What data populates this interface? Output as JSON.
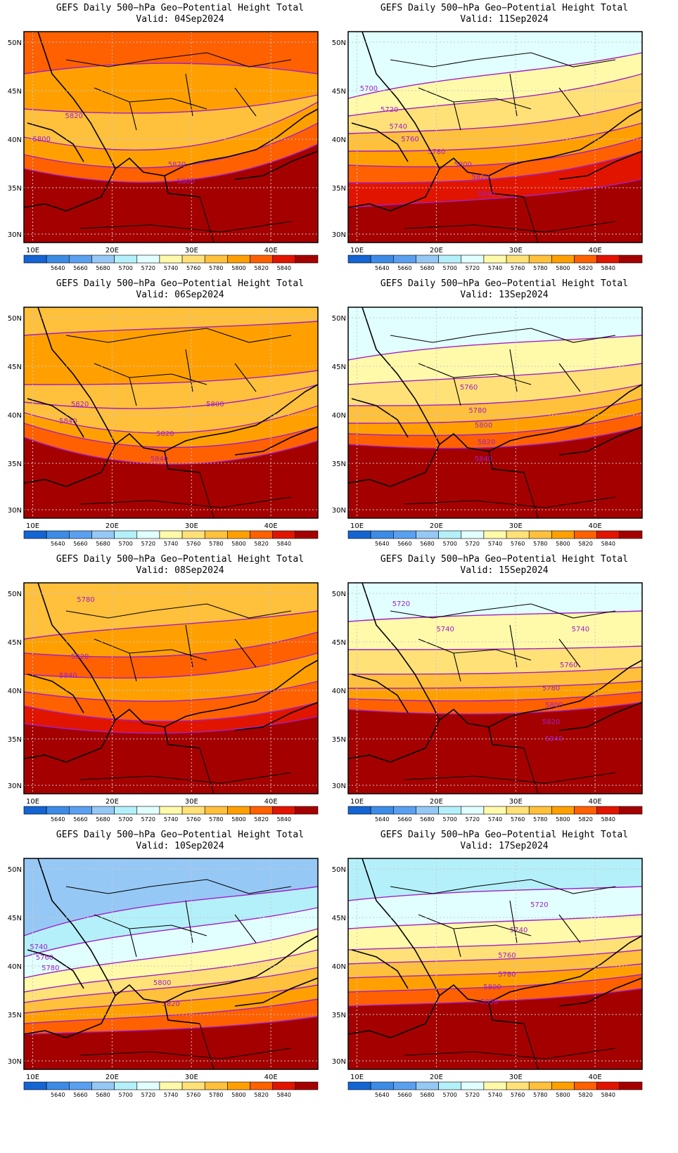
{
  "panel_title": "GEFS Daily 500−hPa Geo−Potential Height Total",
  "lat_labels": [
    "50N",
    "45N",
    "40N",
    "35N",
    "30N"
  ],
  "lon_labels": [
    "10E",
    "20E",
    "30E",
    "40E"
  ],
  "colorbar": {
    "labels": [
      "5640",
      "5660",
      "5680",
      "5700",
      "5720",
      "5740",
      "5760",
      "5780",
      "5800",
      "5820",
      "5840"
    ],
    "colors": [
      "#1464d2",
      "#3c8ce6",
      "#5aa0f0",
      "#96c8f5",
      "#b4f0fa",
      "#e1ffff",
      "#fffaaa",
      "#ffe178",
      "#ffc03c",
      "#ffa000",
      "#ff6000",
      "#e11400",
      "#a50000"
    ]
  },
  "panels": [
    {
      "valid": "Valid: 04Sep2024",
      "contour_labels": [
        "5820",
        "5800",
        "5820",
        "5800"
      ]
    },
    {
      "valid": "Valid: 11Sep2024",
      "contour_labels": [
        "5700",
        "5720",
        "5740",
        "5760",
        "5780",
        "5800",
        "5820",
        "5840"
      ]
    },
    {
      "valid": "Valid: 06Sep2024",
      "contour_labels": [
        "5820",
        "5840",
        "5800",
        "5820",
        "5840"
      ]
    },
    {
      "valid": "Valid: 13Sep2024",
      "contour_labels": [
        "5760",
        "5780",
        "5800",
        "5820",
        "5840"
      ]
    },
    {
      "valid": "Valid: 08Sep2024",
      "contour_labels": [
        "5780",
        "5820",
        "5840"
      ]
    },
    {
      "valid": "Valid: 15Sep2024",
      "contour_labels": [
        "5720",
        "5740",
        "5740",
        "5760",
        "5780",
        "5800",
        "5820",
        "5840"
      ]
    },
    {
      "valid": "Valid: 10Sep2024",
      "contour_labels": [
        "5740",
        "5760",
        "5780",
        "5800",
        "5820"
      ]
    },
    {
      "valid": "Valid: 17Sep2024",
      "contour_labels": [
        "5720",
        "5740",
        "5760",
        "5780",
        "5800",
        "5820"
      ]
    }
  ]
}
